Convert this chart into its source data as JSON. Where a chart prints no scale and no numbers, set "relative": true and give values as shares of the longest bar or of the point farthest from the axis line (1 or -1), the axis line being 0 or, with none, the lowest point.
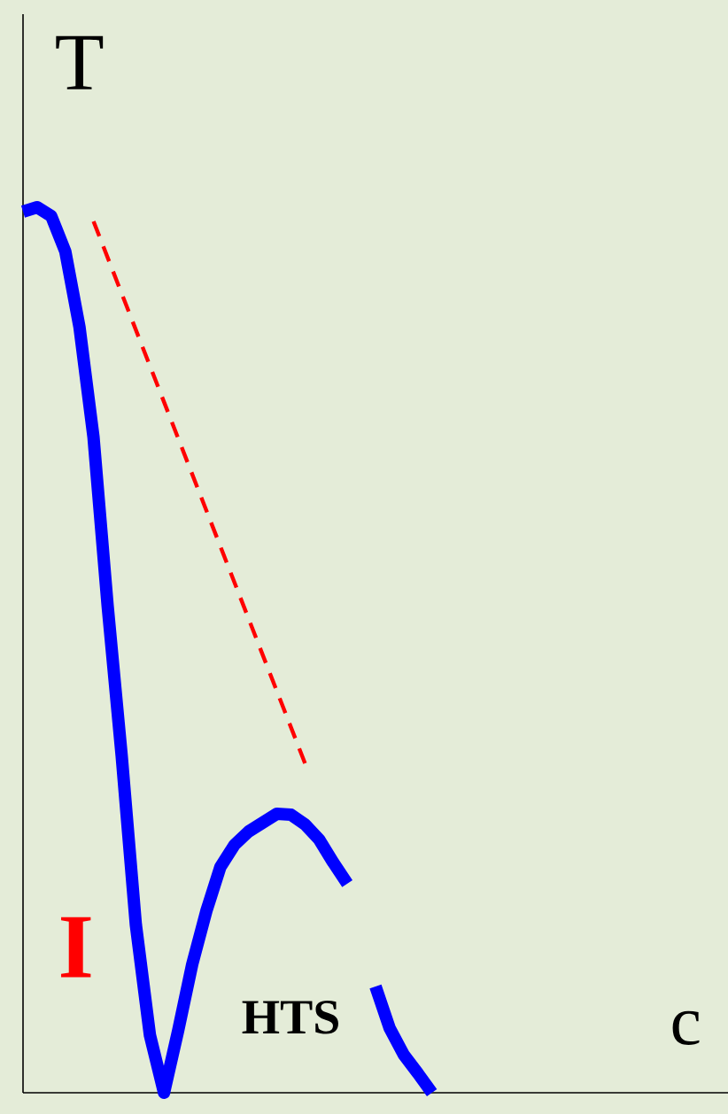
{
  "chart_data": {
    "type": "line",
    "relative": true,
    "ylabel": "T",
    "xlabel": "c",
    "annotations": [
      "I",
      "HTS"
    ],
    "categories": [
      null,
      null,
      null,
      null,
      null,
      null,
      null,
      null,
      null,
      null,
      null,
      null,
      null,
      null,
      null,
      null,
      null,
      null,
      null,
      null,
      null,
      null,
      null,
      null,
      null,
      null,
      null,
      null,
      null,
      null
    ],
    "series": [
      {
        "color": "#0000ff",
        "line_style": "solid",
        "values": [
          0.995,
          1.0,
          0.99,
          0.95,
          0.865,
          0.74,
          0.55,
          0.38,
          0.19,
          0.065,
          0,
          0.07,
          0.145,
          0.205,
          0.255,
          0.28,
          0.295,
          0.305,
          0.315,
          0.314,
          0.303,
          0.286,
          0.26,
          0.236,
          null,
          0.12,
          0.073,
          0.043,
          0.022,
          0
        ]
      },
      {
        "color": "#ff0000",
        "line_style": "dashed",
        "values": [
          null,
          null,
          null,
          null,
          null,
          0.984,
          null,
          null,
          null,
          null,
          null,
          null,
          null,
          null,
          null,
          null,
          null,
          null,
          null,
          null,
          0.372,
          null,
          null,
          null,
          null,
          null,
          null,
          null,
          null,
          null
        ]
      }
    ]
  }
}
